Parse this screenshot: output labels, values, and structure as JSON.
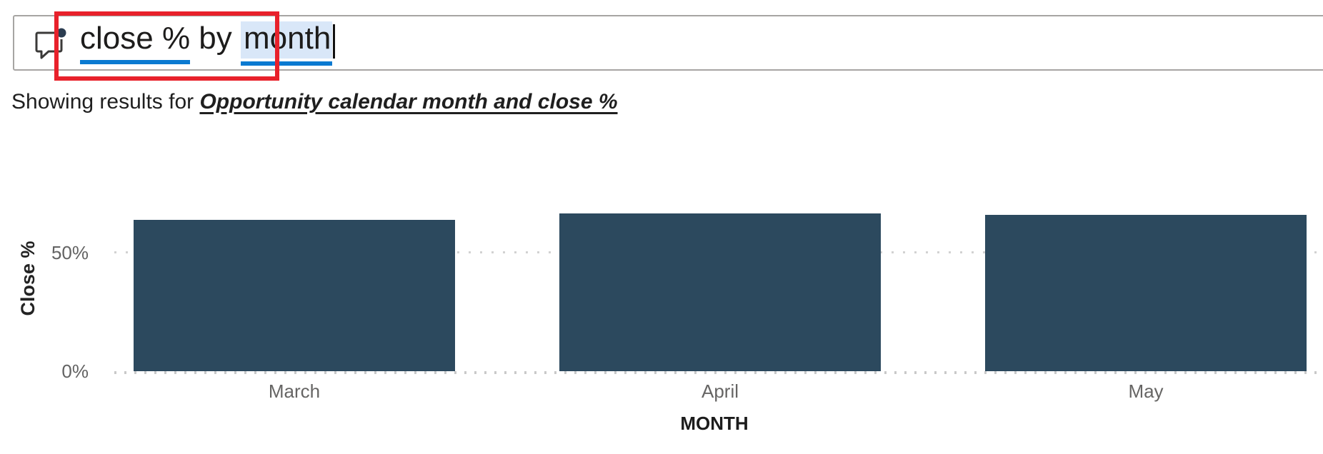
{
  "query": {
    "full_text": "close % by month",
    "term1": "close %",
    "connector": " by ",
    "term2": "month"
  },
  "results_line": {
    "prefix": "Showing results for ",
    "interpretation": "Opportunity calendar month and close %"
  },
  "colors": {
    "accent_underline": "#0b7ad1",
    "term_highlight": "#d9e7f8",
    "annotation_red": "#e8212b",
    "bar": "#2c495e"
  },
  "chart_data": {
    "type": "bar",
    "title": "",
    "categories": [
      "March",
      "April",
      "May"
    ],
    "values": [
      64,
      66.5,
      66
    ],
    "xlabel": "MONTH",
    "ylabel": "Close %",
    "ytick_labels": [
      "0%",
      "50%"
    ],
    "ylim": [
      0,
      70
    ],
    "grid": "dotted-horizontal",
    "legend": "none",
    "bar_color": "#2c495e"
  }
}
